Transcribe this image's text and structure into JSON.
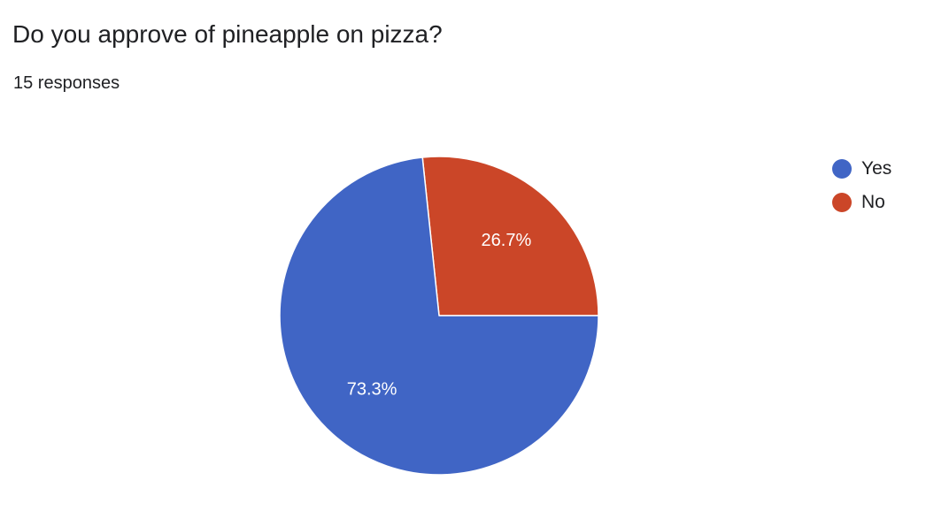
{
  "question": {
    "title": "Do you approve of pineapple on pizza?",
    "responses": "15 responses"
  },
  "chart_data": {
    "type": "pie",
    "title": "Do you approve of pineapple on pizza?",
    "categories": [
      "Yes",
      "No"
    ],
    "values": [
      11,
      4
    ],
    "labels": [
      "73.3%",
      "26.7%"
    ],
    "colors": [
      "#4065C5",
      "#CB4628"
    ],
    "legend": "right",
    "legend_entries": [
      "Yes",
      "No"
    ]
  }
}
